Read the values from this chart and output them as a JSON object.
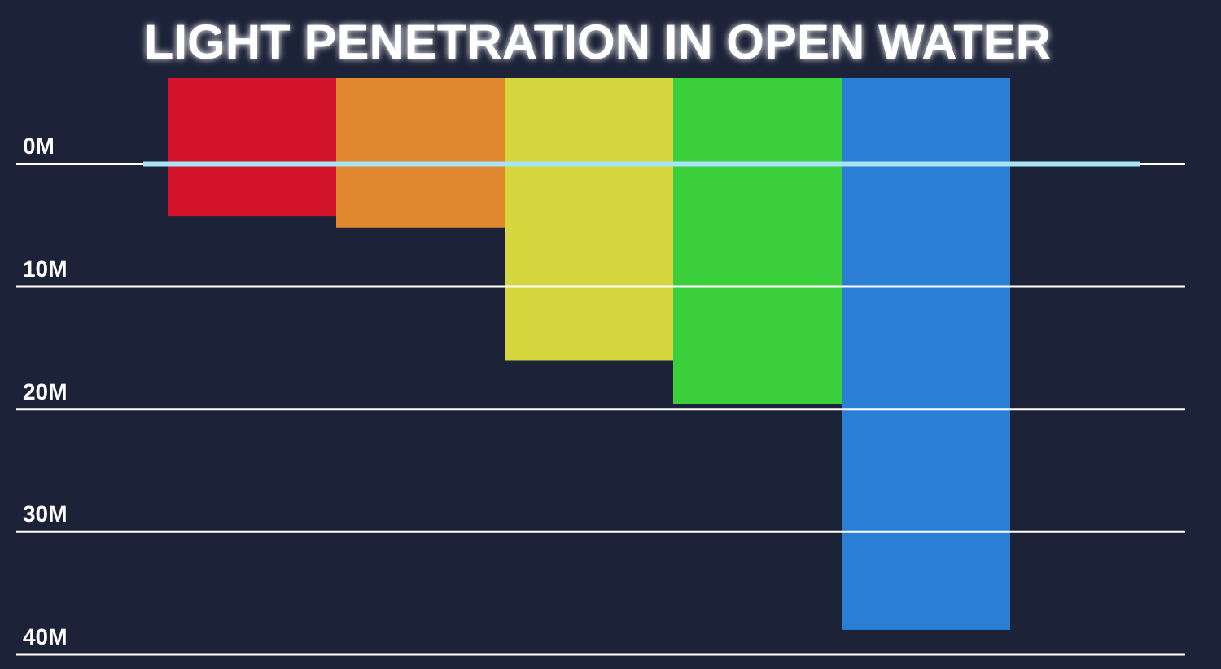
{
  "chart_data": {
    "type": "bar",
    "title": "LIGHT PENETRATION IN OPEN WATER",
    "categories": [
      null,
      null,
      null,
      null,
      null
    ],
    "base": [
      -7,
      -7,
      -7,
      -7,
      -7
    ],
    "values": [
      11.3,
      12.2,
      23,
      26.6,
      45
    ],
    "colors": [
      "#d4142a",
      "#e0882e",
      "#d6d63e",
      "#3ccf3c",
      "#2a7fd4"
    ],
    "ylim": [
      40,
      -7
    ],
    "yticks": [
      {
        "value": 0,
        "label": "0M"
      },
      {
        "value": 10,
        "label": "10M"
      },
      {
        "value": 20,
        "label": "20M"
      },
      {
        "value": 30,
        "label": "30M"
      },
      {
        "value": 40,
        "label": "40M"
      }
    ],
    "grid": "y",
    "ref_lines": [
      {
        "axis": "y",
        "value": 0,
        "color": "#a8e4f4",
        "line_style": "solid"
      }
    ]
  }
}
